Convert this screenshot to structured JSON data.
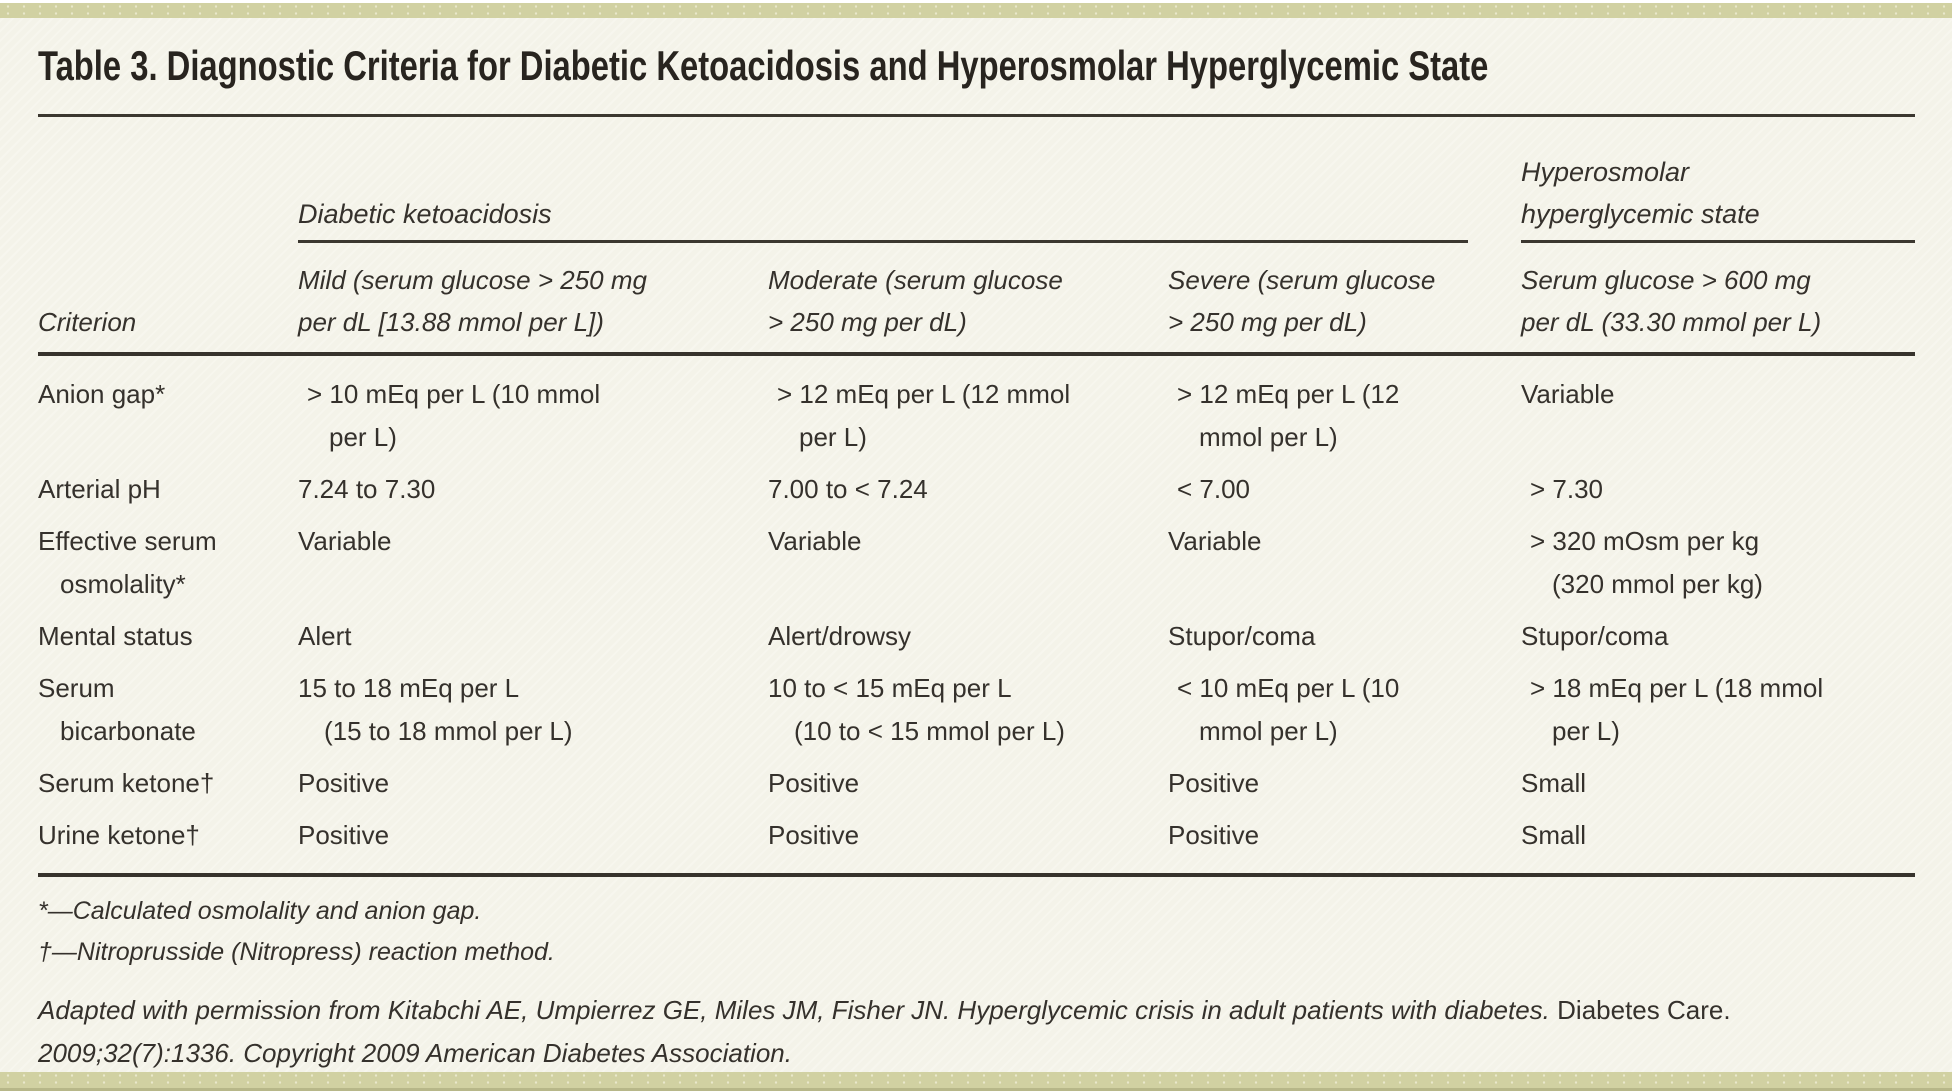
{
  "colors": {
    "background": "#f4f3e9",
    "band_olive": "#d1d1a2",
    "text": "#35312c",
    "rule": "#3b372f"
  },
  "table": {
    "title": "Table 3. Diagnostic Criteria for Diabetic Ketoacidosis and Hyperosmolar Hyperglycemic State",
    "group_headers": {
      "dka": "Diabetic ketoacidosis",
      "hhs": "Hyperosmolar\nhyperglycemic state"
    },
    "column_headers": {
      "criterion": "Criterion",
      "mild": "Mild (serum glucose > 250 mg\nper dL [13.88 mmol per L])",
      "moderate": "Moderate (serum glucose\n> 250 mg per dL)",
      "severe": "Severe (serum glucose\n> 250 mg per dL)",
      "hhs": "Serum glucose > 600 mg\nper dL (33.30 mmol per L)"
    },
    "rows": [
      {
        "criterion": "Anion gap*",
        "mild": "> 10 mEq per L (10 mmol\nper L)",
        "moderate": "> 12 mEq per L (12 mmol\nper L)",
        "severe": "> 12 mEq per L (12\nmmol per L)",
        "hhs": "Variable"
      },
      {
        "criterion": "Arterial pH",
        "mild": "7.24 to 7.30",
        "moderate": "7.00 to < 7.24",
        "severe": "< 7.00",
        "hhs": "> 7.30"
      },
      {
        "criterion": "Effective serum\nosmolality*",
        "mild": "Variable",
        "moderate": "Variable",
        "severe": "Variable",
        "hhs": "> 320 mOsm per kg\n(320 mmol per kg)"
      },
      {
        "criterion": "Mental status",
        "mild": "Alert",
        "moderate": "Alert/drowsy",
        "severe": "Stupor/coma",
        "hhs": "Stupor/coma"
      },
      {
        "criterion": "Serum\nbicarbonate",
        "mild": "15 to 18 mEq per L\n(15 to 18 mmol per L)",
        "moderate": "10 to < 15 mEq per L\n(10 to < 15 mmol per L)",
        "severe": "< 10 mEq per L (10\nmmol per L)",
        "hhs": "> 18 mEq per L (18 mmol\nper L)"
      },
      {
        "criterion": "Serum ketone†",
        "mild": "Positive",
        "moderate": "Positive",
        "severe": "Positive",
        "hhs": "Small"
      },
      {
        "criterion": "Urine ketone†",
        "mild": "Positive",
        "moderate": "Positive",
        "severe": "Positive",
        "hhs": "Small"
      }
    ],
    "footnotes": [
      "*—Calculated osmolality and anion gap.",
      "†—Nitroprusside (Nitropress) reaction method."
    ],
    "credit": {
      "part1": "Adapted with permission from Kitabchi AE, Umpierrez GE, Miles JM, Fisher JN. Hyperglycemic crisis in adult patients with diabetes.",
      "journal": "Diabetes Care.",
      "part2": "2009;32(7):1336. Copyright 2009 American Diabetes Association."
    }
  }
}
